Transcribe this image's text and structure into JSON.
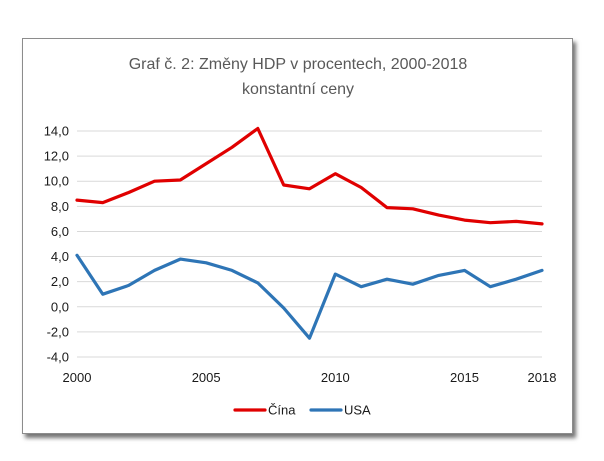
{
  "chart_data": {
    "type": "line",
    "title": "Graf č. 2: Změny HDP v procentech, 2000-2018",
    "subtitle": "konstantní ceny",
    "xlabel": "",
    "ylabel": "",
    "x": [
      2000,
      2001,
      2002,
      2003,
      2004,
      2005,
      2006,
      2007,
      2008,
      2009,
      2010,
      2011,
      2012,
      2013,
      2014,
      2015,
      2016,
      2017,
      2018
    ],
    "xlim": [
      2000,
      2018
    ],
    "ylim": [
      -4,
      14
    ],
    "x_tick_labels": [
      "2000",
      "2005",
      "2010",
      "2015",
      "2018"
    ],
    "x_tick_values": [
      2000,
      2005,
      2010,
      2015,
      2018
    ],
    "y_tick_labels": [
      "-4,0",
      "-2,0",
      "0,0",
      "2,0",
      "4,0",
      "6,0",
      "8,0",
      "10,0",
      "12,0",
      "14,0"
    ],
    "y_tick_values": [
      -4,
      -2,
      0,
      2,
      4,
      6,
      8,
      10,
      12,
      14
    ],
    "grid": true,
    "legend_position": "bottom",
    "series": [
      {
        "name": "Čína",
        "color": "#e00000",
        "values": [
          8.5,
          8.3,
          9.1,
          10.0,
          10.1,
          11.4,
          12.7,
          14.2,
          9.7,
          9.4,
          10.6,
          9.5,
          7.9,
          7.8,
          7.3,
          6.9,
          6.7,
          6.8,
          6.6
        ]
      },
      {
        "name": "USA",
        "color": "#2e75b6",
        "values": [
          4.1,
          1.0,
          1.7,
          2.9,
          3.8,
          3.5,
          2.9,
          1.9,
          -0.1,
          -2.5,
          2.6,
          1.6,
          2.2,
          1.8,
          2.5,
          2.9,
          1.6,
          2.2,
          2.9
        ]
      }
    ]
  }
}
